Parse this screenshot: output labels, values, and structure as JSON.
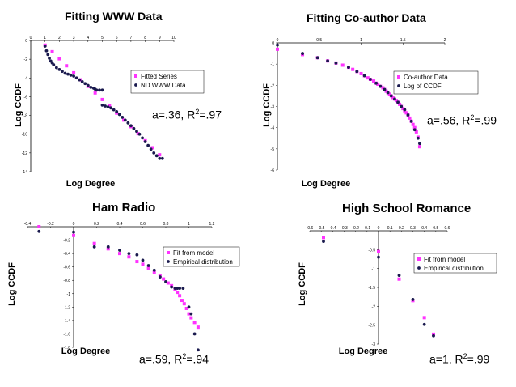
{
  "colors": {
    "fit": "#ff33ff",
    "empirical": "#1a1a4e"
  },
  "chart_data": [
    {
      "id": "www",
      "type": "scatter",
      "title": "Fitting WWW Data",
      "xlabel": "Log Degree",
      "ylabel": "Log CCDF",
      "xlim": [
        0,
        10
      ],
      "ylim": [
        -14,
        0
      ],
      "xticks": [
        "0",
        "1",
        "2",
        "3",
        "4",
        "5",
        "6",
        "7",
        "8",
        "9",
        "10"
      ],
      "yticks": [
        "0",
        "-2",
        "-4",
        "-6",
        "-8",
        "-10",
        "-12",
        "-14"
      ],
      "legend": [
        "Fitted Series",
        "ND WWW Data"
      ],
      "fit_text": "a=.36, R",
      "fit_text_sup": "2",
      "fit_text_end": "=.97",
      "series": [
        {
          "name": "Fitted Series",
          "style": "fit",
          "x": [
            1.0,
            1.5,
            2.0,
            2.5,
            3.0,
            3.5,
            4.0,
            4.5,
            5.0,
            5.5,
            6.0,
            6.5,
            7.0,
            7.5,
            8.0,
            8.5,
            9.0
          ],
          "y": [
            -0.5,
            -1.2,
            -1.95,
            -2.7,
            -3.45,
            -4.2,
            -4.9,
            -5.6,
            -6.3,
            -7.0,
            -7.75,
            -8.5,
            -9.2,
            -9.95,
            -10.7,
            -11.45,
            -12.2
          ]
        },
        {
          "name": "ND WWW Data",
          "style": "emp",
          "x": [
            1.0,
            1.1,
            1.2,
            1.3,
            1.4,
            1.5,
            1.6,
            1.8,
            2.0,
            2.2,
            2.4,
            2.6,
            2.8,
            3.0,
            3.2,
            3.4,
            3.6,
            3.8,
            4.0,
            4.2,
            4.4,
            4.5,
            4.6,
            4.8,
            5.0,
            5.0,
            5.2,
            5.4,
            5.6,
            5.8,
            6.0,
            6.2,
            6.4,
            6.6,
            6.8,
            7.0,
            7.2,
            7.4,
            7.6,
            7.8,
            8.0,
            8.2,
            8.4,
            8.6,
            8.8,
            9.0,
            9.2
          ],
          "y": [
            -0.6,
            -1.1,
            -1.5,
            -1.9,
            -2.2,
            -2.4,
            -2.6,
            -2.9,
            -3.1,
            -3.3,
            -3.5,
            -3.6,
            -3.7,
            -3.8,
            -4.0,
            -4.2,
            -4.4,
            -4.6,
            -4.8,
            -5.0,
            -5.1,
            -5.2,
            -5.3,
            -5.3,
            -5.3,
            -6.9,
            -7.0,
            -7.1,
            -7.2,
            -7.4,
            -7.6,
            -7.9,
            -8.2,
            -8.5,
            -8.8,
            -9.1,
            -9.4,
            -9.7,
            -10.0,
            -10.4,
            -10.8,
            -11.2,
            -11.6,
            -12.0,
            -12.3,
            -12.6,
            -12.6
          ]
        }
      ]
    },
    {
      "id": "coauthor",
      "type": "scatter",
      "title": "Fitting Co-author Data",
      "xlabel": "Log Degree",
      "ylabel": "Log CCDF",
      "xlim": [
        0,
        2
      ],
      "ylim": [
        -6,
        0
      ],
      "xticks": [
        "0",
        "0.5",
        "1",
        "1.5",
        "2"
      ],
      "yticks": [
        "0",
        "-1",
        "-2",
        "-3",
        "-4",
        "-5",
        "-6"
      ],
      "legend": [
        "Co-author Data",
        "Log of CCDF"
      ],
      "fit_text": "a=.56, R",
      "fit_text_sup": "2",
      "fit_text_end": "=.99",
      "series": [
        {
          "name": "Co-author Data",
          "style": "fit",
          "x": [
            0.0,
            0.3,
            0.48,
            0.6,
            0.7,
            0.78,
            0.85,
            0.9,
            0.95,
            1.0,
            1.04,
            1.08,
            1.11,
            1.15,
            1.18,
            1.2,
            1.23,
            1.26,
            1.28,
            1.3,
            1.32,
            1.34,
            1.36,
            1.38,
            1.4,
            1.42,
            1.44,
            1.46,
            1.48,
            1.5,
            1.52,
            1.54,
            1.56,
            1.58,
            1.6,
            1.62,
            1.64,
            1.66,
            1.68,
            1.7
          ],
          "y": [
            -0.3,
            -0.55,
            -0.7,
            -0.85,
            -0.95,
            -1.05,
            -1.15,
            -1.25,
            -1.35,
            -1.45,
            -1.55,
            -1.65,
            -1.72,
            -1.8,
            -1.9,
            -1.95,
            -2.05,
            -2.12,
            -2.2,
            -2.28,
            -2.35,
            -2.42,
            -2.5,
            -2.58,
            -2.65,
            -2.72,
            -2.8,
            -2.9,
            -3.0,
            -3.1,
            -3.2,
            -3.3,
            -3.4,
            -3.55,
            -3.7,
            -3.85,
            -4.0,
            -4.2,
            -4.45,
            -4.9
          ]
        },
        {
          "name": "Log of CCDF",
          "style": "emp",
          "x": [
            0.0,
            0.3,
            0.48,
            0.6,
            0.7,
            0.85,
            0.95,
            1.04,
            1.11,
            1.18,
            1.23,
            1.28,
            1.32,
            1.36,
            1.4,
            1.44,
            1.48,
            1.52,
            1.56,
            1.6,
            1.64,
            1.68,
            1.7
          ],
          "y": [
            -0.1,
            -0.5,
            -0.7,
            -0.85,
            -0.95,
            -1.15,
            -1.35,
            -1.55,
            -1.72,
            -1.9,
            -2.05,
            -2.2,
            -2.35,
            -2.5,
            -2.65,
            -2.8,
            -3.0,
            -3.15,
            -3.4,
            -3.7,
            -4.1,
            -4.5,
            -4.75
          ]
        }
      ]
    },
    {
      "id": "ham",
      "type": "scatter",
      "title": "Ham Radio",
      "xlabel": "Log Degree",
      "ylabel": "Log CCDF",
      "xlim": [
        -0.4,
        1.2
      ],
      "ylim": [
        -1.8,
        0
      ],
      "xticks": [
        "-0.4",
        "-0.2",
        "0",
        "0.2",
        "0.4",
        "0.6",
        "0.8",
        "1",
        "1.2"
      ],
      "yticks": [
        "-0.2",
        "-0.4",
        "-0.6",
        "-0.8",
        "-1",
        "-1.2",
        "-1.4",
        "-1.6",
        "-1.8"
      ],
      "legend": [
        "Fit from model",
        "Empirical distribution"
      ],
      "fit_text": "a=.59, R",
      "fit_text_sup": "2",
      "fit_text_end": "=.94",
      "series": [
        {
          "name": "Fit from model",
          "style": "fit",
          "x": [
            -0.3,
            0.0,
            0.18,
            0.3,
            0.4,
            0.48,
            0.55,
            0.6,
            0.65,
            0.7,
            0.75,
            0.78,
            0.82,
            0.85,
            0.88,
            0.9,
            0.92,
            0.94,
            0.96,
            0.98,
            1.0,
            1.02,
            1.05,
            1.08
          ],
          "y": [
            0.0,
            -0.13,
            -0.25,
            -0.33,
            -0.4,
            -0.45,
            -0.52,
            -0.56,
            -0.62,
            -0.68,
            -0.73,
            -0.78,
            -0.84,
            -0.88,
            -0.93,
            -0.98,
            -1.03,
            -1.1,
            -1.15,
            -1.22,
            -1.3,
            -1.36,
            -1.43,
            -1.5
          ]
        },
        {
          "name": "Empirical distribution",
          "style": "emp",
          "x": [
            -0.3,
            0.0,
            0.18,
            0.3,
            0.4,
            0.48,
            0.55,
            0.6,
            0.65,
            0.7,
            0.75,
            0.8,
            0.85,
            0.88,
            0.9,
            0.92,
            0.95,
            1.0,
            1.02,
            1.05,
            1.08
          ],
          "y": [
            -0.07,
            -0.08,
            -0.3,
            -0.3,
            -0.35,
            -0.4,
            -0.42,
            -0.5,
            -0.58,
            -0.65,
            -0.75,
            -0.82,
            -0.9,
            -0.92,
            -0.92,
            -0.92,
            -0.92,
            -1.2,
            -1.3,
            -1.6,
            -1.84
          ]
        }
      ]
    },
    {
      "id": "highschool",
      "type": "scatter",
      "title": "High School Romance",
      "xlabel": "Log Degree",
      "ylabel": "Log CCDF",
      "xlim": [
        -0.6,
        0.6
      ],
      "ylim": [
        -3,
        0
      ],
      "xticks": [
        "-0.6",
        "-0.5",
        "-0.4",
        "-0.3",
        "-0.2",
        "-0.1",
        "0",
        "0.1",
        "0.2",
        "0.3",
        "0.4",
        "0.5",
        "0.6"
      ],
      "yticks": [
        "-0.5",
        "-1",
        "-1.5",
        "-2",
        "-2.5",
        "-3"
      ],
      "legend": [
        "Fit from model",
        "Empirical distribution"
      ],
      "fit_text": "a=1, R",
      "fit_text_sup": "2",
      "fit_text_end": "=.99",
      "series": [
        {
          "name": "Fit from model",
          "style": "fit",
          "x": [
            -0.48,
            0.0,
            0.18,
            0.3,
            0.4,
            0.48
          ],
          "y": [
            -0.18,
            -0.55,
            -1.28,
            -1.85,
            -2.3,
            -2.74
          ]
        },
        {
          "name": "Empirical distribution",
          "style": "emp",
          "x": [
            -0.48,
            0.0,
            0.18,
            0.3,
            0.4,
            0.48
          ],
          "y": [
            -0.28,
            -0.7,
            -1.18,
            -1.82,
            -2.48,
            -2.78
          ]
        }
      ]
    }
  ]
}
